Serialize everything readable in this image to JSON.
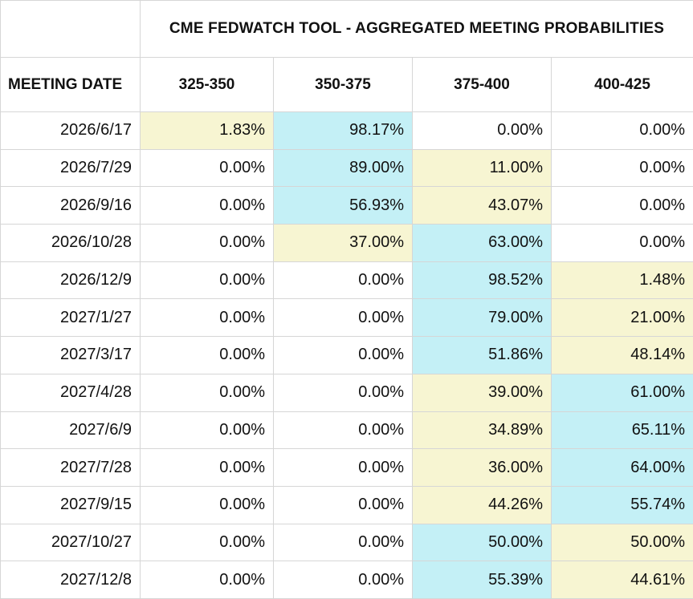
{
  "header": {
    "title": "CME FEDWATCH TOOL - AGGREGATED MEETING PROBABILITIES"
  },
  "table": {
    "columns": [
      "MEETING DATE",
      "325-350",
      "350-375",
      "375-400",
      "400-425"
    ],
    "colors": {
      "high": "#c4f0f6",
      "low": "#f7f5d2"
    },
    "rows": [
      {
        "date": "2026/6/17",
        "cells": [
          "1.83%",
          "98.17%",
          "0.00%",
          "0.00%"
        ],
        "shading": [
          "low",
          "high",
          null,
          null
        ]
      },
      {
        "date": "2026/7/29",
        "cells": [
          "0.00%",
          "89.00%",
          "11.00%",
          "0.00%"
        ],
        "shading": [
          null,
          "high",
          "low",
          null
        ]
      },
      {
        "date": "2026/9/16",
        "cells": [
          "0.00%",
          "56.93%",
          "43.07%",
          "0.00%"
        ],
        "shading": [
          null,
          "high",
          "low",
          null
        ]
      },
      {
        "date": "2026/10/28",
        "cells": [
          "0.00%",
          "37.00%",
          "63.00%",
          "0.00%"
        ],
        "shading": [
          null,
          "low",
          "high",
          null
        ]
      },
      {
        "date": "2026/12/9",
        "cells": [
          "0.00%",
          "0.00%",
          "98.52%",
          "1.48%"
        ],
        "shading": [
          null,
          null,
          "high",
          "low"
        ]
      },
      {
        "date": "2027/1/27",
        "cells": [
          "0.00%",
          "0.00%",
          "79.00%",
          "21.00%"
        ],
        "shading": [
          null,
          null,
          "high",
          "low"
        ]
      },
      {
        "date": "2027/3/17",
        "cells": [
          "0.00%",
          "0.00%",
          "51.86%",
          "48.14%"
        ],
        "shading": [
          null,
          null,
          "high",
          "low"
        ]
      },
      {
        "date": "2027/4/28",
        "cells": [
          "0.00%",
          "0.00%",
          "39.00%",
          "61.00%"
        ],
        "shading": [
          null,
          null,
          "low",
          "high"
        ]
      },
      {
        "date": "2027/6/9",
        "cells": [
          "0.00%",
          "0.00%",
          "34.89%",
          "65.11%"
        ],
        "shading": [
          null,
          null,
          "low",
          "high"
        ]
      },
      {
        "date": "2027/7/28",
        "cells": [
          "0.00%",
          "0.00%",
          "36.00%",
          "64.00%"
        ],
        "shading": [
          null,
          null,
          "low",
          "high"
        ]
      },
      {
        "date": "2027/9/15",
        "cells": [
          "0.00%",
          "0.00%",
          "44.26%",
          "55.74%"
        ],
        "shading": [
          null,
          null,
          "low",
          "high"
        ]
      },
      {
        "date": "2027/10/27",
        "cells": [
          "0.00%",
          "0.00%",
          "50.00%",
          "50.00%"
        ],
        "shading": [
          null,
          null,
          "high",
          "low"
        ]
      },
      {
        "date": "2027/12/8",
        "cells": [
          "0.00%",
          "0.00%",
          "55.39%",
          "44.61%"
        ],
        "shading": [
          null,
          null,
          "high",
          "low"
        ]
      }
    ]
  }
}
